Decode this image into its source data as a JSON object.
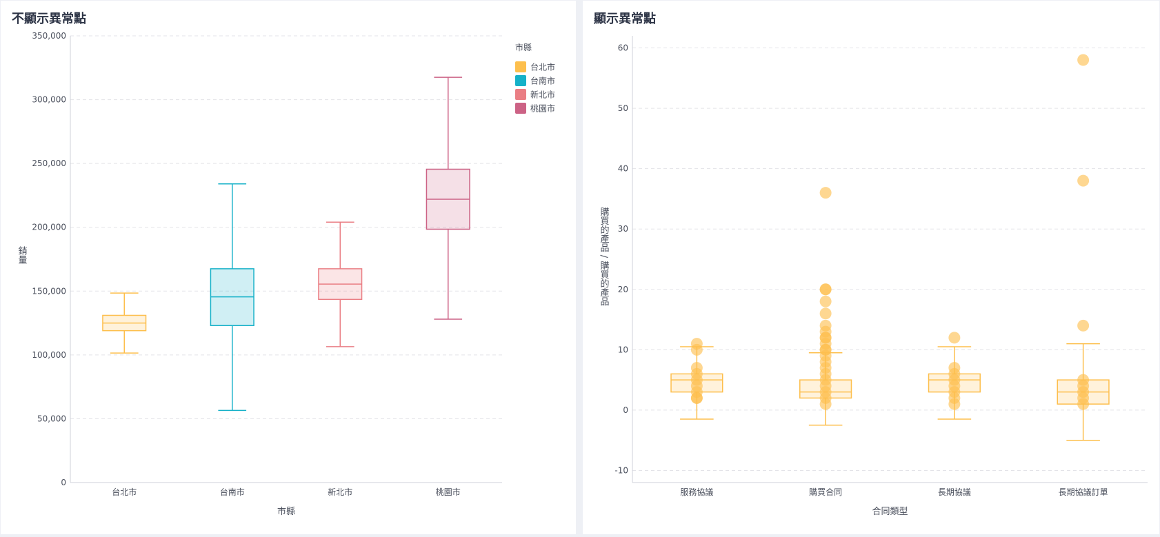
{
  "charts": {
    "left": {
      "title": "不顯示異常點"
    },
    "right": {
      "title": "顯示異常點"
    }
  },
  "chart_data": [
    {
      "type": "box",
      "title": "不顯示異常點",
      "xlabel": "市縣",
      "ylabel": "銷量",
      "ylim": [
        0,
        350000
      ],
      "y_ticks": [
        0,
        50000,
        100000,
        150000,
        200000,
        250000,
        300000,
        350000
      ],
      "y_tick_labels": [
        "0",
        "50,000",
        "100,000",
        "150,000",
        "200,000",
        "250,000",
        "300,000",
        "350,000"
      ],
      "grid": true,
      "show_outliers": false,
      "legend": {
        "title": "市縣",
        "placement": "top-right",
        "entries": [
          "台北市",
          "台南市",
          "新北市",
          "桃園市"
        ]
      },
      "categories": [
        "台北市",
        "台南市",
        "新北市",
        "桃園市"
      ],
      "colors": [
        "#fdbf4d",
        "#16b1c8",
        "#ea7e84",
        "#cc6285"
      ],
      "boxes": [
        {
          "category": "台北市",
          "min": 101500,
          "q1": 119000,
          "median": 125000,
          "q3": 131000,
          "max": 148500
        },
        {
          "category": "台南市",
          "min": 56500,
          "q1": 123000,
          "median": 145500,
          "q3": 167500,
          "max": 234000
        },
        {
          "category": "新北市",
          "min": 106500,
          "q1": 143500,
          "median": 155500,
          "q3": 167500,
          "max": 204000
        },
        {
          "category": "桃園市",
          "min": 128000,
          "q1": 198500,
          "median": 222000,
          "q3": 245500,
          "max": 317500
        }
      ]
    },
    {
      "type": "box",
      "title": "顯示異常點",
      "xlabel": "合同類型",
      "ylabel": "購買的產品 / 購買的產品",
      "ylim": [
        -12,
        62
      ],
      "y_ticks": [
        -10,
        0,
        10,
        20,
        30,
        40,
        50,
        60
      ],
      "y_tick_labels": [
        "-10",
        "0",
        "10",
        "20",
        "30",
        "40",
        "50",
        "60"
      ],
      "grid": true,
      "show_outliers": true,
      "categories": [
        "服務協議",
        "購買合同",
        "長期協議",
        "長期協議訂單"
      ],
      "color": "#fdbf4d",
      "boxes": [
        {
          "category": "服務協議",
          "min": -1.5,
          "q1": 3,
          "median": 5,
          "q3": 6,
          "max": 10.5
        },
        {
          "category": "購買合同",
          "min": -2.5,
          "q1": 2,
          "median": 3,
          "q3": 5,
          "max": 9.5
        },
        {
          "category": "長期協議",
          "min": -1.5,
          "q1": 3,
          "median": 5,
          "q3": 6,
          "max": 10.5
        },
        {
          "category": "長期協議訂單",
          "min": -5,
          "q1": 1,
          "median": 3,
          "q3": 5,
          "max": 11
        }
      ],
      "points": [
        {
          "category": "服務協議",
          "values": [
            11,
            10,
            7,
            6,
            5,
            4,
            3,
            2,
            2
          ]
        },
        {
          "category": "購買合同",
          "values": [
            36,
            20,
            20,
            18,
            16,
            14,
            13,
            12,
            12,
            11,
            10,
            10,
            9,
            8,
            7,
            6,
            5,
            4,
            3,
            2,
            1
          ]
        },
        {
          "category": "長期協議",
          "values": [
            12,
            7,
            6,
            5,
            4,
            3,
            2,
            1
          ]
        },
        {
          "category": "長期協議訂單",
          "values": [
            58,
            38,
            14,
            5,
            4,
            3,
            2,
            1
          ]
        }
      ]
    }
  ]
}
